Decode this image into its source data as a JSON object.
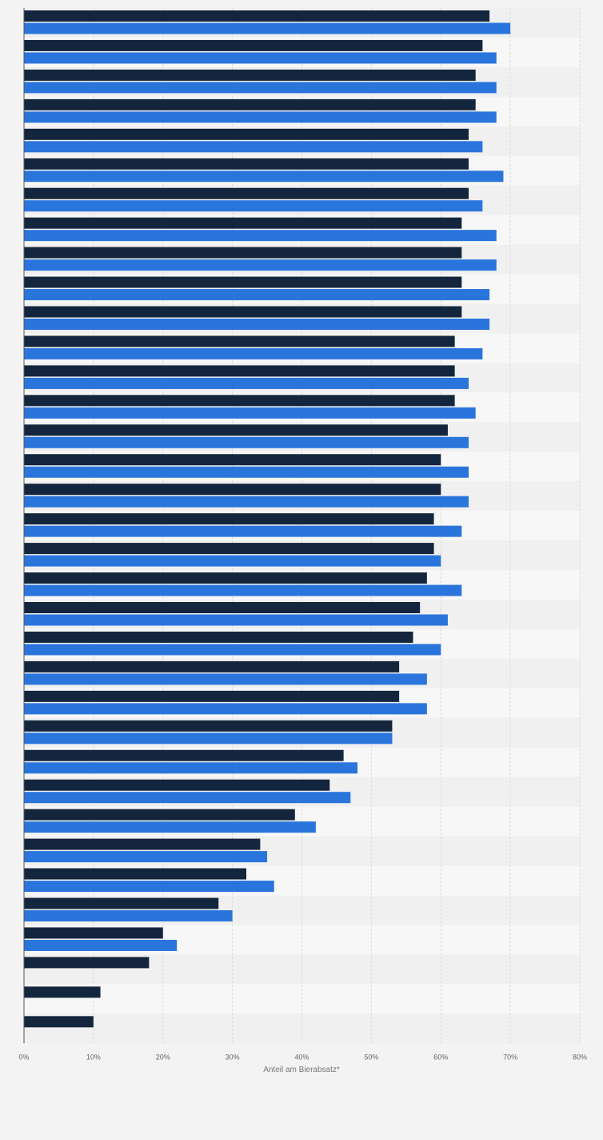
{
  "chart_data": {
    "type": "bar",
    "orientation": "horizontal",
    "xlabel": "Anteil am Bierabsatz*",
    "xlim": [
      0,
      80
    ],
    "xticks": [
      "0%",
      "10%",
      "20%",
      "30%",
      "40%",
      "50%",
      "60%",
      "70%",
      "80%"
    ],
    "grid": true,
    "legend": "none",
    "colors": {
      "series1": "#14263d",
      "series2": "#2a75dc",
      "band_light": "#f7f7f8",
      "band_dark": "#f0f0f1"
    },
    "series": [
      {
        "values": [
          67,
          66,
          65,
          65,
          64,
          64,
          64,
          63,
          63,
          63,
          63,
          62,
          62,
          62,
          61,
          60,
          60,
          59,
          59,
          58,
          57,
          56,
          54,
          54,
          53,
          46,
          44,
          39,
          34,
          32,
          28,
          20,
          18,
          11,
          10
        ]
      },
      {
        "values": [
          70,
          68,
          68,
          68,
          66,
          69,
          66,
          68,
          68,
          67,
          67,
          66,
          64,
          65,
          64,
          64,
          64,
          63,
          60,
          63,
          61,
          60,
          58,
          58,
          53,
          48,
          47,
          42,
          35,
          36,
          30,
          22,
          null,
          null,
          null
        ]
      }
    ]
  }
}
